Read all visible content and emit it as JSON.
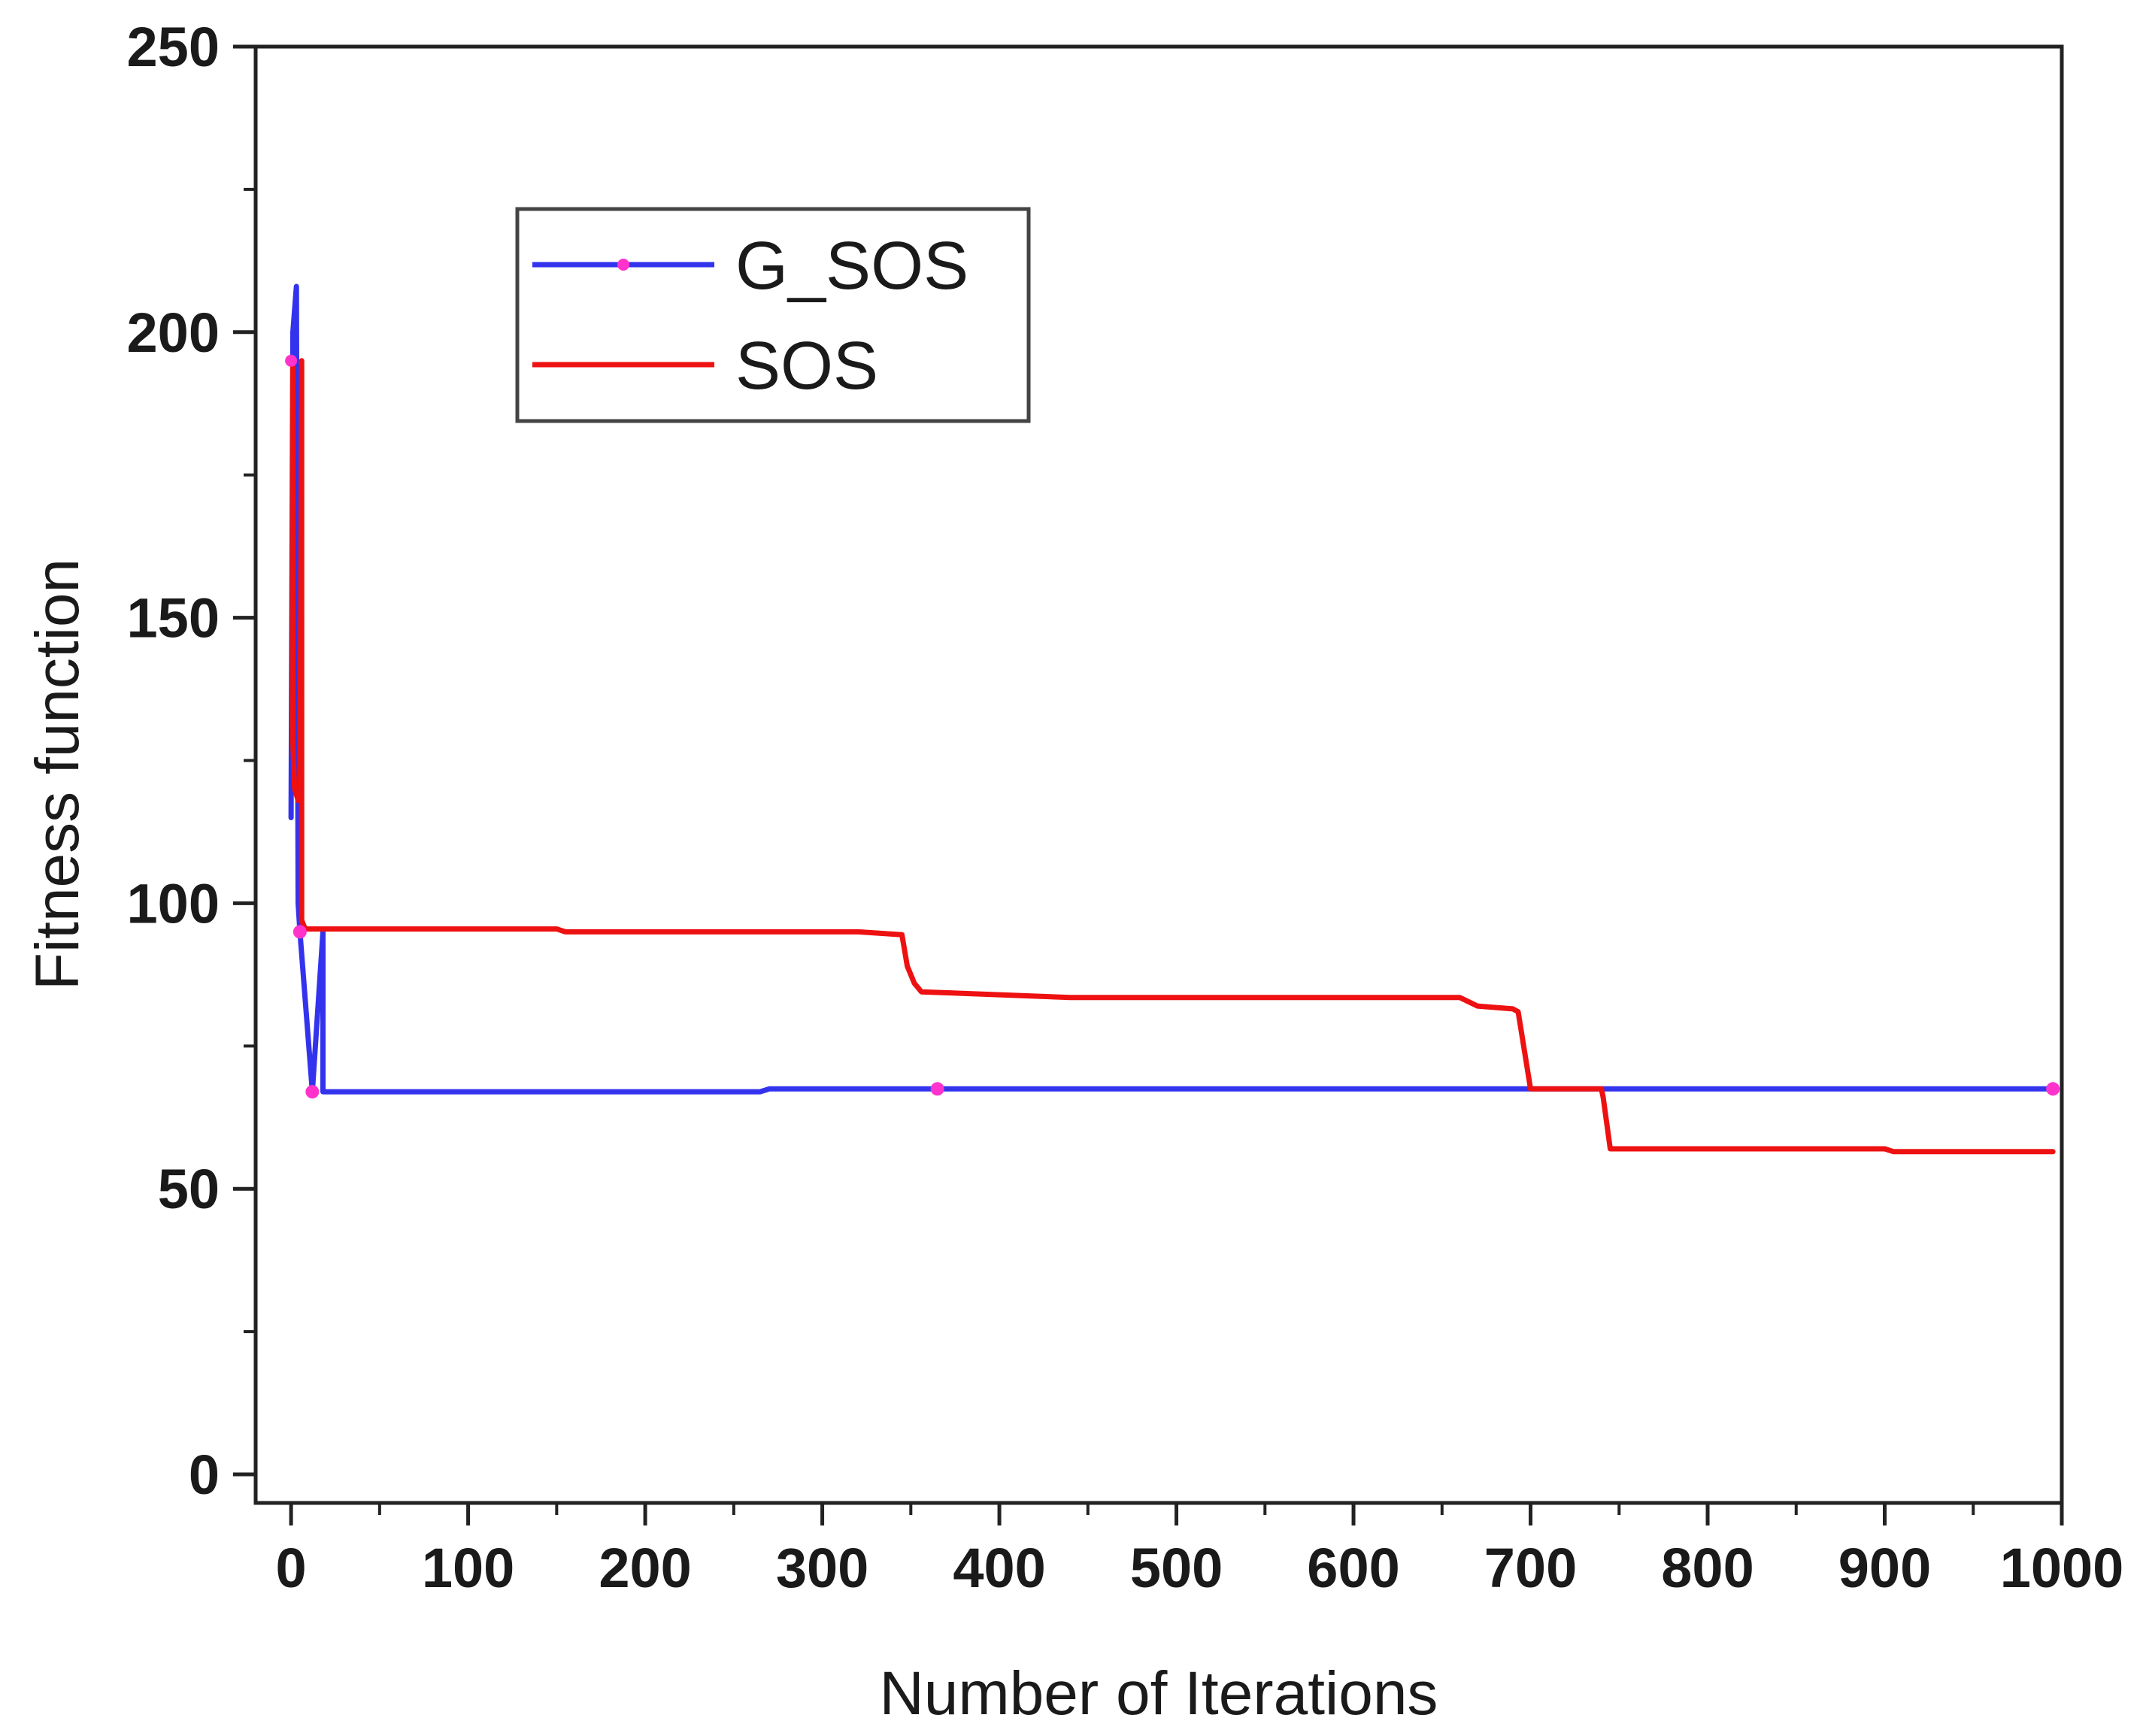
{
  "chart_data": {
    "type": "line",
    "title": "",
    "xlabel": "Number of Iterations",
    "ylabel": "Fitness function",
    "xlim": [
      -20,
      1000
    ],
    "ylim": [
      -5,
      250
    ],
    "xticks": [
      0,
      100,
      200,
      300,
      400,
      500,
      600,
      700,
      800,
      900,
      1000
    ],
    "yticks": [
      0,
      50,
      100,
      150,
      200,
      250
    ],
    "legend_position": "upper-left",
    "series": [
      {
        "name": "G_SOS",
        "color": "#3333ee",
        "marker_color": "#ff33cc",
        "x": [
          0,
          1,
          3,
          4,
          5,
          12,
          18,
          18,
          100,
          200,
          265,
          270,
          365,
          500,
          700,
          800,
          995
        ],
        "y": [
          115,
          200,
          208,
          100,
          95,
          67,
          95,
          67,
          67,
          67,
          67,
          67.5,
          67.5,
          67.5,
          67.5,
          67.5,
          67.5
        ]
      },
      {
        "name": "SOS",
        "color": "#ee1111",
        "x": [
          0,
          1,
          1,
          2,
          3,
          4,
          5,
          6,
          6,
          8,
          100,
          150,
          155,
          320,
          345,
          348,
          352,
          356,
          440,
          660,
          670,
          690,
          693,
          700,
          735,
          740,
          741,
          745,
          900,
          905,
          995
        ],
        "y": [
          195,
          195,
          128,
          120,
          119,
          118,
          118,
          195,
          97,
          95.5,
          95.5,
          95.5,
          95,
          95,
          94.5,
          89,
          86,
          84.5,
          83.5,
          83.5,
          82,
          81.5,
          81,
          67.5,
          67.5,
          67.5,
          66,
          57,
          57,
          56.5,
          56.5
        ]
      }
    ]
  }
}
